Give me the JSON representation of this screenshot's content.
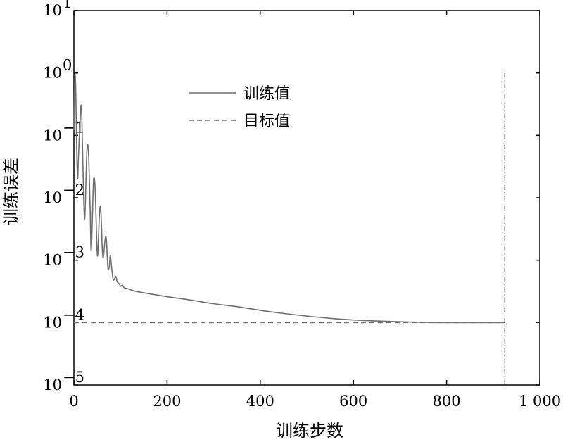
{
  "chart_data": {
    "type": "line",
    "xlabel": "训练步数",
    "ylabel": "训练误差",
    "x_scale": "linear",
    "y_scale": "log",
    "xlim": [
      0,
      1000
    ],
    "ylim": [
      1e-05,
      10
    ],
    "x_ticks": [
      {
        "value": 0,
        "label": "0"
      },
      {
        "value": 200,
        "label": "200"
      },
      {
        "value": 400,
        "label": "400"
      },
      {
        "value": 600,
        "label": "600"
      },
      {
        "value": 800,
        "label": "800"
      },
      {
        "value": 1000,
        "label": "1 000"
      }
    ],
    "y_ticks": [
      {
        "value": 10,
        "base": "10",
        "exp": "1"
      },
      {
        "value": 1,
        "base": "10",
        "exp": "0"
      },
      {
        "value": 0.1,
        "base": "10",
        "exp": "−1"
      },
      {
        "value": 0.01,
        "base": "10",
        "exp": "−2"
      },
      {
        "value": 0.001,
        "base": "10",
        "exp": "−3"
      },
      {
        "value": 0.0001,
        "base": "10",
        "exp": "−4"
      },
      {
        "value": 1e-05,
        "base": "10",
        "exp": "−5"
      }
    ],
    "grid": false,
    "legend_position": "top-center",
    "series": [
      {
        "name": "训练值",
        "style": "solid",
        "color": "#6e6e6e",
        "points": [
          [
            0,
            0.12
          ],
          [
            2,
            0.9
          ],
          [
            4,
            0.5
          ],
          [
            6,
            0.06
          ],
          [
            8,
            0.02
          ],
          [
            10,
            0.05
          ],
          [
            13,
            0.15
          ],
          [
            15,
            0.3
          ],
          [
            17,
            0.2
          ],
          [
            20,
            0.02
          ],
          [
            23,
            0.0045
          ],
          [
            26,
            0.02
          ],
          [
            28,
            0.06
          ],
          [
            30,
            0.07
          ],
          [
            32,
            0.04
          ],
          [
            35,
            0.006
          ],
          [
            37,
            0.0014
          ],
          [
            40,
            0.006
          ],
          [
            42,
            0.018
          ],
          [
            44,
            0.02
          ],
          [
            46,
            0.012
          ],
          [
            49,
            0.002
          ],
          [
            51,
            0.0012
          ],
          [
            54,
            0.004
          ],
          [
            56,
            0.007
          ],
          [
            58,
            0.006
          ],
          [
            61,
            0.0015
          ],
          [
            63,
            0.0011
          ],
          [
            66,
            0.0018
          ],
          [
            68,
            0.0024
          ],
          [
            70,
            0.002
          ],
          [
            73,
            0.00075
          ],
          [
            76,
            0.0008
          ],
          [
            78,
            0.0012
          ],
          [
            80,
            0.0009
          ],
          [
            84,
            0.0005
          ],
          [
            87,
            0.0005
          ],
          [
            90,
            0.00055
          ],
          [
            93,
            0.00045
          ],
          [
            97,
            0.00042
          ],
          [
            100,
            0.00038
          ],
          [
            104,
            0.0004
          ],
          [
            108,
            0.00036
          ],
          [
            115,
            0.00035
          ],
          [
            130,
            0.00032
          ],
          [
            150,
            0.0003
          ],
          [
            200,
            0.00026
          ],
          [
            250,
            0.00023
          ],
          [
            300,
            0.0002
          ],
          [
            350,
            0.00018
          ],
          [
            400,
            0.000157
          ],
          [
            450,
            0.00014
          ],
          [
            500,
            0.000127
          ],
          [
            550,
            0.000117
          ],
          [
            600,
            0.00011
          ],
          [
            650,
            0.000106
          ],
          [
            700,
            0.000103
          ],
          [
            750,
            0.000101
          ],
          [
            800,
            0.0001
          ],
          [
            850,
            0.0001
          ],
          [
            925,
            0.0001
          ]
        ]
      },
      {
        "name": "目标值",
        "style": "dashed",
        "color": "#6e6e6e",
        "points": [
          [
            0,
            0.0001
          ],
          [
            925,
            0.0001
          ]
        ]
      }
    ],
    "vertical_marker": {
      "x": 925,
      "y_top": 1,
      "style": "dash-dot",
      "color": "#000000"
    }
  }
}
